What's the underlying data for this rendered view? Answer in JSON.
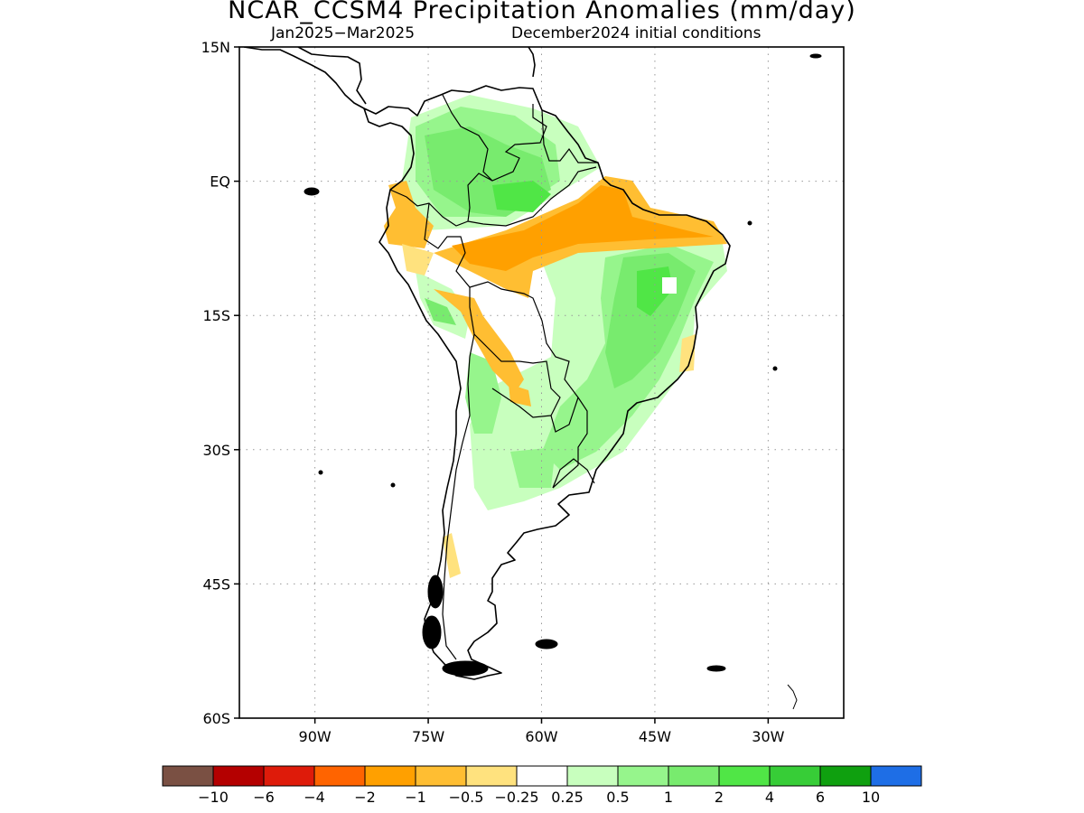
{
  "title": "NCAR_CCSM4 Precipitation Anomalies (mm/day)",
  "subtitle_left": "Jan2025−Mar2025",
  "subtitle_right": "December2024 initial conditions",
  "map": {
    "lon_range": [
      -100,
      -20
    ],
    "lat_range": [
      -60,
      15
    ],
    "lat_ticks": [
      {
        "value": 15,
        "label": "15N"
      },
      {
        "value": 0,
        "label": "EQ"
      },
      {
        "value": -15,
        "label": "15S"
      },
      {
        "value": -30,
        "label": "30S"
      },
      {
        "value": -45,
        "label": "45S"
      },
      {
        "value": -60,
        "label": "60S"
      }
    ],
    "lon_ticks": [
      {
        "value": -90,
        "label": "90W"
      },
      {
        "value": -75,
        "label": "75W"
      },
      {
        "value": -60,
        "label": "60W"
      },
      {
        "value": -45,
        "label": "45W"
      },
      {
        "value": -30,
        "label": "30W"
      }
    ],
    "grid": true,
    "land_outline_color": "#000000"
  },
  "colorbar": {
    "colors": [
      "#7a5043",
      "#b40000",
      "#de1b0a",
      "#ff6400",
      "#ffa000",
      "#ffbe32",
      "#ffe27e",
      "#ffffff",
      "#c8ffbe",
      "#96f58c",
      "#78eb6e",
      "#50e646",
      "#37cd37",
      "#0fa00f",
      "#1e6ee6"
    ],
    "labels": [
      "−10",
      "−6",
      "−4",
      "−2",
      "−1",
      "−0.5",
      "−0.25",
      "0.25",
      "0.5",
      "1",
      "2",
      "4",
      "6",
      "10"
    ]
  }
}
